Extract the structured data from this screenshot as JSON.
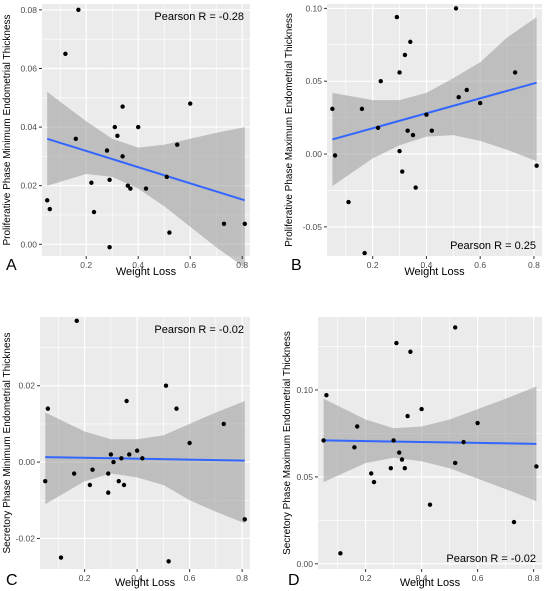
{
  "chart_data": [
    {
      "type": "scatter",
      "panel_label": "A",
      "xlabel": "Weight Loss",
      "ylabel": "Proliferative Phase Minimum Endometrial Thickness",
      "annotation": "Pearson R = -0.28",
      "annotation_position": "top-right",
      "xlim": [
        0.03,
        0.83
      ],
      "ylim": [
        -0.004,
        0.082
      ],
      "xticks": [
        0.2,
        0.4,
        0.6,
        0.8
      ],
      "xtick_labels": [
        "0.2",
        "0.4",
        "0.6",
        "0.8"
      ],
      "yticks": [
        0.0,
        0.02,
        0.04,
        0.06,
        0.08
      ],
      "ytick_labels": [
        "0.00",
        "0.02",
        "0.04",
        "0.06",
        "0.08"
      ],
      "grid": true,
      "points": [
        [
          0.05,
          0.015
        ],
        [
          0.06,
          0.012
        ],
        [
          0.12,
          0.065
        ],
        [
          0.16,
          0.036
        ],
        [
          0.17,
          0.08
        ],
        [
          0.22,
          0.021
        ],
        [
          0.23,
          0.011
        ],
        [
          0.28,
          0.032
        ],
        [
          0.29,
          -0.001
        ],
        [
          0.29,
          0.022
        ],
        [
          0.31,
          0.04
        ],
        [
          0.32,
          0.037
        ],
        [
          0.34,
          0.047
        ],
        [
          0.34,
          0.03
        ],
        [
          0.36,
          0.02
        ],
        [
          0.37,
          0.019
        ],
        [
          0.4,
          0.04
        ],
        [
          0.43,
          0.019
        ],
        [
          0.51,
          0.023
        ],
        [
          0.52,
          0.004
        ],
        [
          0.55,
          0.034
        ],
        [
          0.6,
          0.048
        ],
        [
          0.73,
          0.007
        ],
        [
          0.81,
          0.007
        ]
      ],
      "fit_line": {
        "x": [
          0.05,
          0.81
        ],
        "y": [
          0.036,
          0.015
        ]
      },
      "ci_band": {
        "x": [
          0.05,
          0.2,
          0.3,
          0.4,
          0.5,
          0.6,
          0.7,
          0.81
        ],
        "lower": [
          0.02,
          0.024,
          0.023,
          0.019,
          0.013,
          0.006,
          -0.001,
          -0.008
        ],
        "upper": [
          0.052,
          0.042,
          0.036,
          0.033,
          0.034,
          0.036,
          0.038,
          0.04
        ]
      },
      "line_color": "#3366FF",
      "point_color": "#000000",
      "band_color": "#999999",
      "panel_background": "#EBEBEB"
    },
    {
      "type": "scatter",
      "panel_label": "B",
      "xlabel": "Weight Loss",
      "ylabel": "Proliferative Phase Maximum Endometrial Thickness",
      "annotation": "Pearson R = 0.25",
      "annotation_position": "bottom-right",
      "xlim": [
        0.03,
        0.83
      ],
      "ylim": [
        -0.07,
        0.103
      ],
      "xticks": [
        0.2,
        0.4,
        0.6,
        0.8
      ],
      "xtick_labels": [
        "0.2",
        "0.4",
        "0.6",
        "0.8"
      ],
      "yticks": [
        -0.05,
        0.0,
        0.05,
        0.1
      ],
      "ytick_labels": [
        "-0.05",
        "0.00",
        "0.05",
        "0.10"
      ],
      "grid": true,
      "points": [
        [
          0.05,
          0.031
        ],
        [
          0.06,
          -0.001
        ],
        [
          0.11,
          -0.033
        ],
        [
          0.16,
          0.031
        ],
        [
          0.17,
          -0.068
        ],
        [
          0.22,
          0.018
        ],
        [
          0.23,
          0.05
        ],
        [
          0.29,
          0.094
        ],
        [
          0.3,
          0.056
        ],
        [
          0.3,
          0.002
        ],
        [
          0.31,
          -0.012
        ],
        [
          0.32,
          0.068
        ],
        [
          0.33,
          0.016
        ],
        [
          0.34,
          0.077
        ],
        [
          0.35,
          0.013
        ],
        [
          0.36,
          -0.023
        ],
        [
          0.4,
          0.027
        ],
        [
          0.42,
          0.016
        ],
        [
          0.51,
          0.1
        ],
        [
          0.52,
          0.039
        ],
        [
          0.55,
          0.044
        ],
        [
          0.6,
          0.035
        ],
        [
          0.73,
          0.056
        ],
        [
          0.81,
          -0.008
        ]
      ],
      "fit_line": {
        "x": [
          0.05,
          0.81
        ],
        "y": [
          0.01,
          0.049
        ]
      },
      "ci_band": {
        "x": [
          0.05,
          0.2,
          0.3,
          0.4,
          0.5,
          0.6,
          0.7,
          0.81
        ],
        "lower": [
          -0.022,
          -0.003,
          0.006,
          0.012,
          0.013,
          0.009,
          0.003,
          -0.005
        ],
        "upper": [
          0.042,
          0.037,
          0.037,
          0.042,
          0.052,
          0.063,
          0.08,
          0.094
        ]
      },
      "line_color": "#3366FF",
      "point_color": "#000000",
      "band_color": "#999999",
      "panel_background": "#EBEBEB"
    },
    {
      "type": "scatter",
      "panel_label": "C",
      "xlabel": "Weight Loss",
      "ylabel": "Secretory Phase Minimum Endometrial Thickness",
      "annotation": "Pearson R = -0.02",
      "annotation_position": "top-right",
      "xlim": [
        0.03,
        0.83
      ],
      "ylim": [
        -0.028,
        0.038
      ],
      "xticks": [
        0.2,
        0.4,
        0.6,
        0.8
      ],
      "xtick_labels": [
        "0.2",
        "0.4",
        "0.6",
        "0.8"
      ],
      "yticks": [
        -0.02,
        0.0,
        0.02
      ],
      "ytick_labels": [
        "-0.02",
        "0.00",
        "0.02"
      ],
      "grid": true,
      "points": [
        [
          0.05,
          -0.005
        ],
        [
          0.06,
          0.014
        ],
        [
          0.11,
          -0.025
        ],
        [
          0.16,
          -0.003
        ],
        [
          0.17,
          0.037
        ],
        [
          0.22,
          -0.006
        ],
        [
          0.23,
          -0.002
        ],
        [
          0.29,
          -0.003
        ],
        [
          0.29,
          -0.008
        ],
        [
          0.3,
          0.002
        ],
        [
          0.31,
          0.0
        ],
        [
          0.33,
          -0.005
        ],
        [
          0.34,
          0.001
        ],
        [
          0.35,
          -0.006
        ],
        [
          0.36,
          0.016
        ],
        [
          0.37,
          0.002
        ],
        [
          0.4,
          0.003
        ],
        [
          0.42,
          0.001
        ],
        [
          0.51,
          0.02
        ],
        [
          0.52,
          -0.026
        ],
        [
          0.55,
          0.014
        ],
        [
          0.6,
          0.005
        ],
        [
          0.73,
          0.01
        ],
        [
          0.81,
          -0.015
        ]
      ],
      "fit_line": {
        "x": [
          0.05,
          0.81
        ],
        "y": [
          0.0013,
          0.0004
        ]
      },
      "ci_band": {
        "x": [
          0.05,
          0.2,
          0.3,
          0.4,
          0.5,
          0.6,
          0.7,
          0.81
        ],
        "lower": [
          -0.011,
          -0.005,
          -0.003,
          -0.004,
          -0.006,
          -0.01,
          -0.013,
          -0.016
        ],
        "upper": [
          0.013,
          0.008,
          0.006,
          0.006,
          0.007,
          0.01,
          0.013,
          0.016
        ]
      },
      "line_color": "#3366FF",
      "point_color": "#000000",
      "band_color": "#999999",
      "panel_background": "#EBEBEB"
    },
    {
      "type": "scatter",
      "panel_label": "D",
      "xlabel": "Weight Loss",
      "ylabel": "Secretory Phase Maximum Endometrial Thickness",
      "annotation": "Pearson R = -0.02",
      "annotation_position": "bottom-right",
      "xlim": [
        0.03,
        0.83
      ],
      "ylim": [
        -0.003,
        0.142
      ],
      "xticks": [
        0.2,
        0.4,
        0.6,
        0.8
      ],
      "xtick_labels": [
        "0.2",
        "0.4",
        "0.6",
        "0.8"
      ],
      "yticks": [
        0.0,
        0.05,
        0.1
      ],
      "ytick_labels": [
        "0.00",
        "0.05",
        "0.10"
      ],
      "grid": true,
      "points": [
        [
          0.05,
          0.071
        ],
        [
          0.06,
          0.097
        ],
        [
          0.11,
          0.006
        ],
        [
          0.16,
          0.067
        ],
        [
          0.17,
          0.079
        ],
        [
          0.22,
          0.052
        ],
        [
          0.23,
          0.047
        ],
        [
          0.29,
          0.055
        ],
        [
          0.3,
          0.071
        ],
        [
          0.31,
          0.127
        ],
        [
          0.32,
          0.064
        ],
        [
          0.33,
          0.06
        ],
        [
          0.34,
          0.055
        ],
        [
          0.35,
          0.085
        ],
        [
          0.36,
          0.122
        ],
        [
          0.4,
          0.089
        ],
        [
          0.43,
          0.034
        ],
        [
          0.52,
          0.058
        ],
        [
          0.52,
          0.136
        ],
        [
          0.55,
          0.07
        ],
        [
          0.6,
          0.081
        ],
        [
          0.73,
          0.024
        ],
        [
          0.81,
          0.056
        ]
      ],
      "fit_line": {
        "x": [
          0.05,
          0.81
        ],
        "y": [
          0.071,
          0.069
        ]
      },
      "ci_band": {
        "x": [
          0.05,
          0.2,
          0.3,
          0.4,
          0.5,
          0.6,
          0.7,
          0.81
        ],
        "lower": [
          0.047,
          0.058,
          0.061,
          0.059,
          0.055,
          0.049,
          0.043,
          0.036
        ],
        "upper": [
          0.095,
          0.083,
          0.078,
          0.079,
          0.083,
          0.089,
          0.095,
          0.102
        ]
      },
      "line_color": "#3366FF",
      "point_color": "#000000",
      "band_color": "#999999",
      "panel_background": "#EBEBEB"
    }
  ]
}
